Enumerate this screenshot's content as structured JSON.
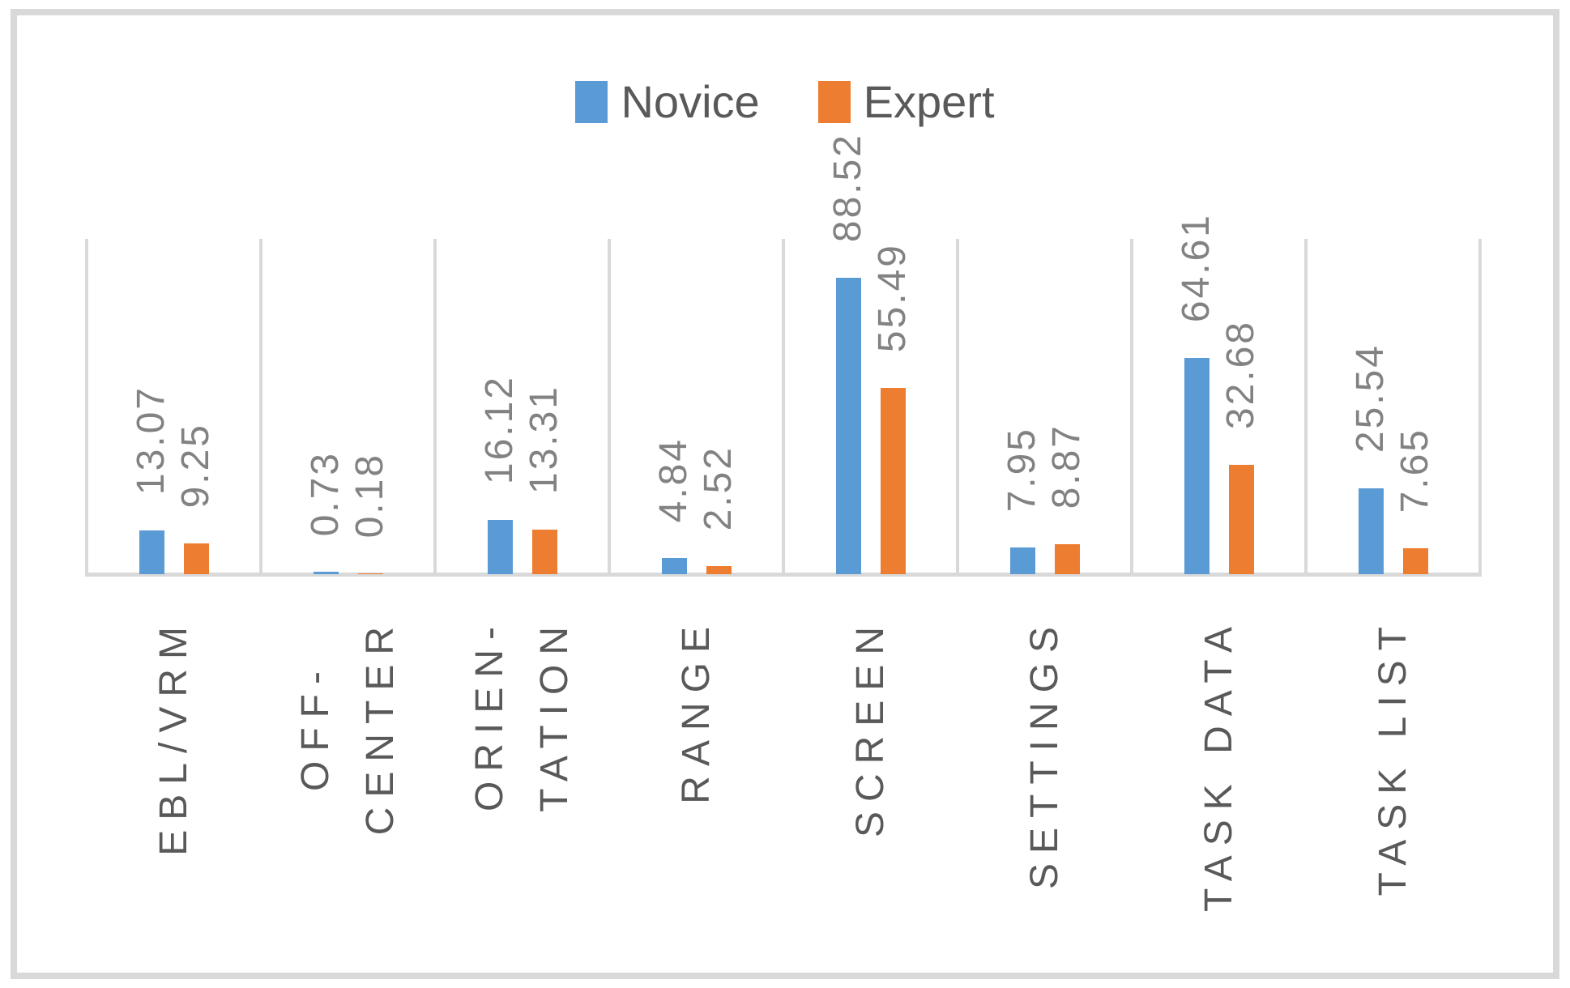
{
  "chart_data": {
    "type": "bar",
    "title": "",
    "categories": [
      "EBL/VRM",
      "OFF-\nCENTER",
      "ORIEN-\nTATION",
      "RANGE",
      "SCREEN",
      "SETTINGS",
      "TASK DATA",
      "TASK LIST"
    ],
    "series": [
      {
        "name": "Novice",
        "color": "#5B9BD5",
        "values": [
          13.07,
          0.73,
          16.12,
          4.84,
          88.52,
          7.95,
          64.61,
          25.54
        ]
      },
      {
        "name": "Expert",
        "color": "#ED7D31",
        "values": [
          9.25,
          0.18,
          13.31,
          2.52,
          55.49,
          8.87,
          32.68,
          7.65
        ]
      }
    ],
    "data_labels": {
      "show": true,
      "rotation": -90,
      "decimals": 2,
      "color": "#828282"
    },
    "category_label_rotation": -90,
    "xlabel": "",
    "ylabel": "",
    "ylim": [
      0,
      100
    ],
    "y_axis_visible": false,
    "gridlines": {
      "horizontal": false,
      "vertical_category_separators": true,
      "color": "#D9D9D9"
    },
    "axis_line_color": "#D9D9D9",
    "frame_border_color": "#D9D9D9",
    "background": "#FFFFFF",
    "category_text_color": "#595959",
    "legend": {
      "position": "top",
      "entries": [
        "Novice",
        "Expert"
      ]
    }
  }
}
